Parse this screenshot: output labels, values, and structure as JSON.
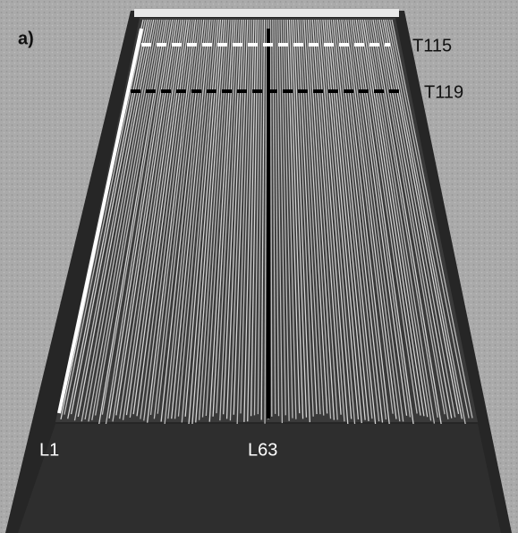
{
  "panel_label": "a)",
  "transects": [
    {
      "label": "T115"
    },
    {
      "label": "T119"
    }
  ],
  "lines": [
    {
      "label": "L1"
    },
    {
      "label": "L63"
    }
  ]
}
